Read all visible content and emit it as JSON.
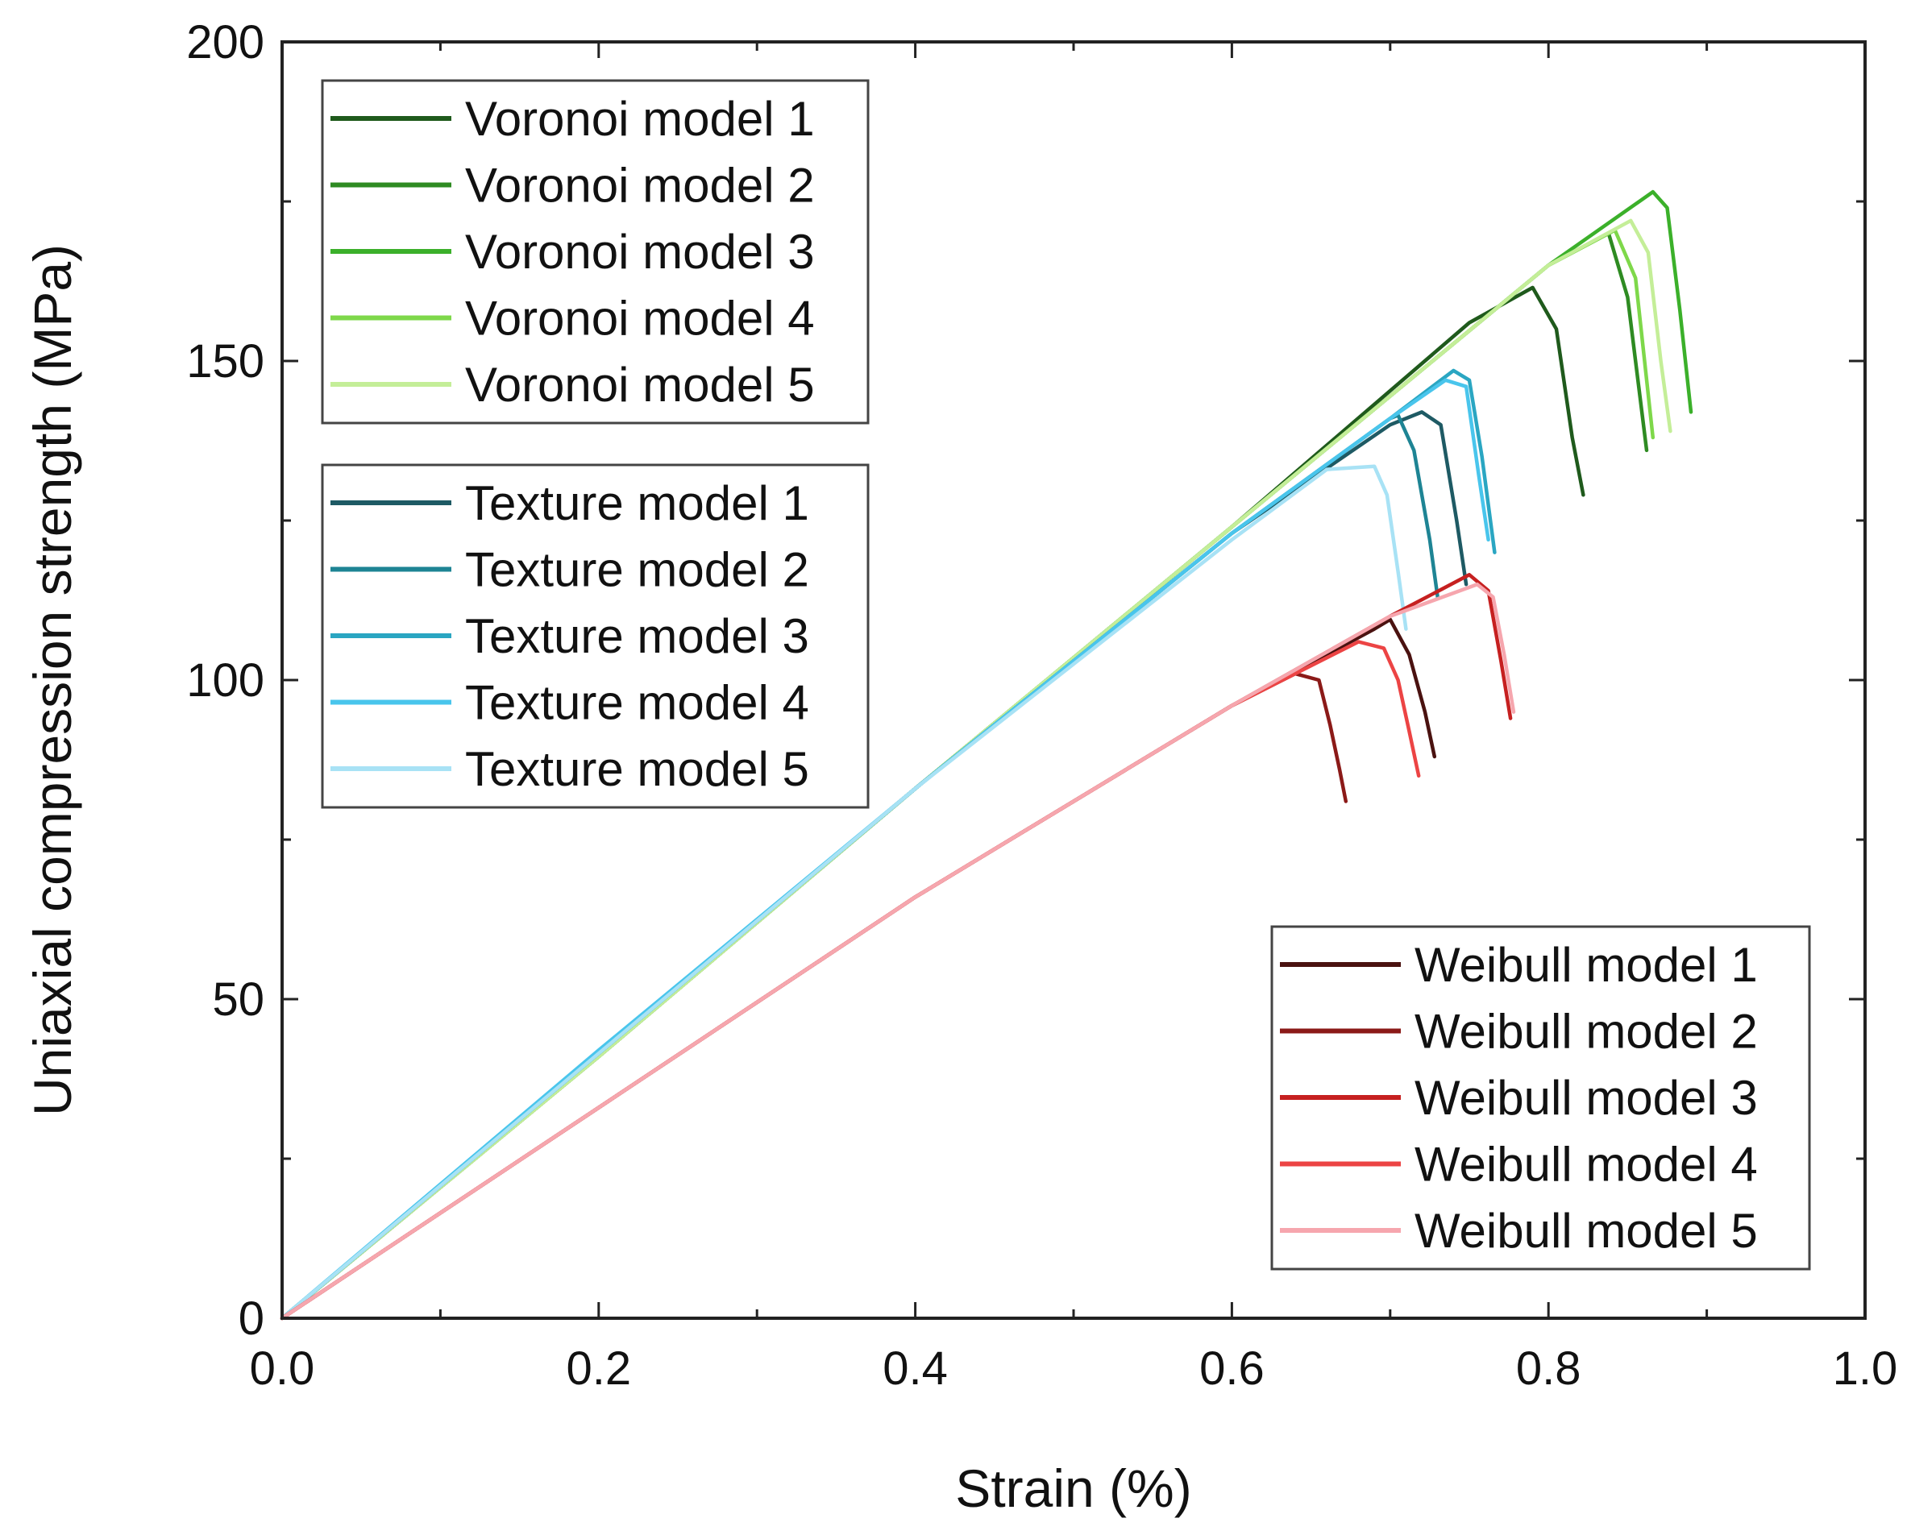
{
  "chart_data": {
    "type": "line",
    "title": "",
    "xlabel": "Strain (%)",
    "ylabel": "Uniaxial compression strength (MPa)",
    "xlim": [
      0.0,
      1.0
    ],
    "ylim": [
      0,
      200
    ],
    "x_ticks": [
      0.0,
      0.2,
      0.4,
      0.6,
      0.8,
      1.0
    ],
    "x_tick_labels": [
      "0.0",
      "0.2",
      "0.4",
      "0.6",
      "0.8",
      "1.0"
    ],
    "y_ticks": [
      0,
      50,
      100,
      150,
      200
    ],
    "y_tick_labels": [
      "0",
      "50",
      "100",
      "150",
      "200"
    ],
    "grid": false,
    "legends": [
      {
        "group": "voronoi",
        "placement": "top-left",
        "entries": [
          "Voronoi model 1",
          "Voronoi model 2",
          "Voronoi model 3",
          "Voronoi model 4",
          "Voronoi model 5"
        ]
      },
      {
        "group": "texture",
        "placement": "upper-left",
        "entries": [
          "Texture model 1",
          "Texture model 2",
          "Texture model 3",
          "Texture model 4",
          "Texture model 5"
        ]
      },
      {
        "group": "weibull",
        "placement": "bottom-right",
        "entries": [
          "Weibull model 1",
          "Weibull model 2",
          "Weibull model 3",
          "Weibull model 4",
          "Weibull model 5"
        ]
      }
    ],
    "series": [
      {
        "name": "Voronoi model 1",
        "group": "voronoi",
        "color": "#1f5a1c",
        "points": [
          [
            0,
            0
          ],
          [
            0.2,
            41
          ],
          [
            0.4,
            83
          ],
          [
            0.6,
            124
          ],
          [
            0.75,
            156
          ],
          [
            0.79,
            161.5
          ],
          [
            0.805,
            155
          ],
          [
            0.815,
            138
          ],
          [
            0.822,
            129
          ]
        ]
      },
      {
        "name": "Voronoi model 2",
        "group": "voronoi",
        "color": "#2e8b22",
        "points": [
          [
            0,
            0
          ],
          [
            0.2,
            41
          ],
          [
            0.4,
            83
          ],
          [
            0.6,
            124
          ],
          [
            0.8,
            165
          ],
          [
            0.838,
            170
          ],
          [
            0.85,
            160
          ],
          [
            0.862,
            136
          ]
        ]
      },
      {
        "name": "Voronoi model 3",
        "group": "voronoi",
        "color": "#3bb02a",
        "points": [
          [
            0,
            0
          ],
          [
            0.2,
            41
          ],
          [
            0.4,
            83
          ],
          [
            0.6,
            124
          ],
          [
            0.8,
            165
          ],
          [
            0.866,
            176.5
          ],
          [
            0.875,
            174
          ],
          [
            0.883,
            158
          ],
          [
            0.89,
            142
          ]
        ]
      },
      {
        "name": "Voronoi model 4",
        "group": "voronoi",
        "color": "#7ed84a",
        "points": [
          [
            0,
            0
          ],
          [
            0.2,
            41
          ],
          [
            0.4,
            83
          ],
          [
            0.6,
            124
          ],
          [
            0.8,
            165
          ],
          [
            0.842,
            170.5
          ],
          [
            0.855,
            163
          ],
          [
            0.866,
            138
          ]
        ]
      },
      {
        "name": "Voronoi model 5",
        "group": "voronoi",
        "color": "#c4ee98",
        "points": [
          [
            0,
            0
          ],
          [
            0.2,
            41
          ],
          [
            0.4,
            83
          ],
          [
            0.6,
            124
          ],
          [
            0.8,
            165
          ],
          [
            0.852,
            172
          ],
          [
            0.863,
            167
          ],
          [
            0.871,
            150
          ],
          [
            0.877,
            139
          ]
        ]
      },
      {
        "name": "Texture model 1",
        "group": "texture",
        "color": "#1e5a64",
        "points": [
          [
            0,
            0
          ],
          [
            0.2,
            41.5
          ],
          [
            0.4,
            83
          ],
          [
            0.6,
            123
          ],
          [
            0.7,
            140
          ],
          [
            0.72,
            142
          ],
          [
            0.732,
            140
          ],
          [
            0.742,
            125
          ],
          [
            0.748,
            115
          ]
        ]
      },
      {
        "name": "Texture model 2",
        "group": "texture",
        "color": "#1e8494",
        "points": [
          [
            0,
            0
          ],
          [
            0.2,
            41.5
          ],
          [
            0.4,
            83
          ],
          [
            0.6,
            123
          ],
          [
            0.7,
            141
          ],
          [
            0.705,
            141.5
          ],
          [
            0.715,
            136
          ],
          [
            0.725,
            122
          ],
          [
            0.73,
            113
          ]
        ]
      },
      {
        "name": "Texture model 3",
        "group": "texture",
        "color": "#2aa6c2",
        "points": [
          [
            0,
            0
          ],
          [
            0.2,
            41.5
          ],
          [
            0.4,
            83
          ],
          [
            0.6,
            123
          ],
          [
            0.7,
            141
          ],
          [
            0.74,
            148.5
          ],
          [
            0.75,
            147
          ],
          [
            0.758,
            135
          ],
          [
            0.766,
            120
          ]
        ]
      },
      {
        "name": "Texture model 4",
        "group": "texture",
        "color": "#49c5ec",
        "points": [
          [
            0,
            0
          ],
          [
            0.2,
            42
          ],
          [
            0.4,
            83
          ],
          [
            0.6,
            123
          ],
          [
            0.7,
            141
          ],
          [
            0.735,
            147
          ],
          [
            0.748,
            146
          ],
          [
            0.756,
            132
          ],
          [
            0.762,
            122
          ]
        ]
      },
      {
        "name": "Texture model 5",
        "group": "texture",
        "color": "#a8e2f5",
        "points": [
          [
            0,
            0
          ],
          [
            0.2,
            41.5
          ],
          [
            0.4,
            83
          ],
          [
            0.6,
            122
          ],
          [
            0.66,
            133
          ],
          [
            0.69,
            133.5
          ],
          [
            0.698,
            129
          ],
          [
            0.705,
            117
          ],
          [
            0.71,
            108
          ]
        ]
      },
      {
        "name": "Weibull model 1",
        "group": "weibull",
        "color": "#4a1210",
        "points": [
          [
            0,
            0
          ],
          [
            0.2,
            33
          ],
          [
            0.4,
            66
          ],
          [
            0.6,
            96
          ],
          [
            0.69,
            108
          ],
          [
            0.7,
            109.5
          ],
          [
            0.712,
            104
          ],
          [
            0.722,
            95
          ],
          [
            0.728,
            88
          ]
        ]
      },
      {
        "name": "Weibull model 2",
        "group": "weibull",
        "color": "#8b1a18",
        "points": [
          [
            0,
            0
          ],
          [
            0.2,
            33
          ],
          [
            0.4,
            66
          ],
          [
            0.6,
            96
          ],
          [
            0.64,
            101
          ],
          [
            0.655,
            100
          ],
          [
            0.662,
            93
          ],
          [
            0.668,
            86
          ],
          [
            0.672,
            81
          ]
        ]
      },
      {
        "name": "Weibull model 3",
        "group": "weibull",
        "color": "#c62020",
        "points": [
          [
            0,
            0
          ],
          [
            0.2,
            33
          ],
          [
            0.4,
            66
          ],
          [
            0.6,
            96
          ],
          [
            0.7,
            110
          ],
          [
            0.75,
            116.5
          ],
          [
            0.762,
            114
          ],
          [
            0.77,
            103
          ],
          [
            0.776,
            94
          ]
        ]
      },
      {
        "name": "Weibull model 4",
        "group": "weibull",
        "color": "#ec4444",
        "points": [
          [
            0,
            0
          ],
          [
            0.2,
            33
          ],
          [
            0.4,
            66
          ],
          [
            0.6,
            96
          ],
          [
            0.68,
            106
          ],
          [
            0.696,
            105
          ],
          [
            0.705,
            100
          ],
          [
            0.712,
            92
          ],
          [
            0.718,
            85
          ]
        ]
      },
      {
        "name": "Weibull model 5",
        "group": "weibull",
        "color": "#f6a6ae",
        "points": [
          [
            0,
            0
          ],
          [
            0.2,
            33
          ],
          [
            0.4,
            66
          ],
          [
            0.6,
            96
          ],
          [
            0.7,
            110
          ],
          [
            0.755,
            115
          ],
          [
            0.765,
            113
          ],
          [
            0.772,
            104
          ],
          [
            0.778,
            95
          ]
        ]
      }
    ]
  }
}
